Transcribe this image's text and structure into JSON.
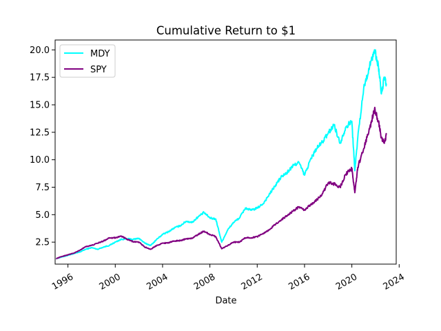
{
  "chart_data": {
    "type": "line",
    "title": "Cumulative Return to $1",
    "xlabel": "Date",
    "ylabel": "",
    "xlim": [
      "1994-12-01",
      "2023-10-01"
    ],
    "ylim": [
      0.5,
      20.9
    ],
    "x_ticks": [
      "1996",
      "2000",
      "2004",
      "2008",
      "2012",
      "2016",
      "2020",
      "2024"
    ],
    "y_ticks": [
      "2.5",
      "5.0",
      "7.5",
      "10.0",
      "12.5",
      "15.0",
      "17.5",
      "20.0"
    ],
    "x_tick_rotation": 30,
    "grid": false,
    "legend": {
      "position": "top-left"
    },
    "series": [
      {
        "name": "MDY",
        "color": "#00ffff",
        "points": [
          [
            "1995-01",
            1.0
          ],
          [
            "1995-07",
            1.15
          ],
          [
            "1996-01",
            1.3
          ],
          [
            "1996-07",
            1.45
          ],
          [
            "1997-01",
            1.6
          ],
          [
            "1997-07",
            1.85
          ],
          [
            "1998-01",
            2.0
          ],
          [
            "1998-07",
            1.85
          ],
          [
            "1999-01",
            2.05
          ],
          [
            "1999-07",
            2.2
          ],
          [
            "2000-01",
            2.5
          ],
          [
            "2000-07",
            2.75
          ],
          [
            "2001-01",
            2.8
          ],
          [
            "2001-07",
            2.75
          ],
          [
            "2002-01",
            2.85
          ],
          [
            "2002-07",
            2.4
          ],
          [
            "2003-01",
            2.2
          ],
          [
            "2003-07",
            2.75
          ],
          [
            "2004-01",
            3.2
          ],
          [
            "2004-07",
            3.45
          ],
          [
            "2005-01",
            3.8
          ],
          [
            "2005-07",
            4.0
          ],
          [
            "2006-01",
            4.4
          ],
          [
            "2006-07",
            4.3
          ],
          [
            "2007-01",
            4.8
          ],
          [
            "2007-07",
            5.2
          ],
          [
            "2008-01",
            4.7
          ],
          [
            "2008-07",
            4.6
          ],
          [
            "2009-01",
            2.5
          ],
          [
            "2009-07",
            3.6
          ],
          [
            "2010-01",
            4.3
          ],
          [
            "2010-07",
            4.7
          ],
          [
            "2011-01",
            5.6
          ],
          [
            "2011-07",
            5.4
          ],
          [
            "2012-01",
            5.6
          ],
          [
            "2012-07",
            6.0
          ],
          [
            "2013-01",
            6.8
          ],
          [
            "2013-07",
            7.6
          ],
          [
            "2014-01",
            8.4
          ],
          [
            "2014-07",
            8.8
          ],
          [
            "2015-01",
            9.4
          ],
          [
            "2015-07",
            9.8
          ],
          [
            "2016-01",
            8.6
          ],
          [
            "2016-07",
            10.0
          ],
          [
            "2017-01",
            11.0
          ],
          [
            "2017-07",
            11.6
          ],
          [
            "2018-01",
            12.4
          ],
          [
            "2018-07",
            13.2
          ],
          [
            "2019-01",
            11.5
          ],
          [
            "2019-07",
            13.0
          ],
          [
            "2020-01",
            13.5
          ],
          [
            "2020-04",
            9.0
          ],
          [
            "2020-07",
            12.0
          ],
          [
            "2021-01",
            16.5
          ],
          [
            "2021-07",
            18.5
          ],
          [
            "2021-12",
            20.0
          ],
          [
            "2022-04",
            18.5
          ],
          [
            "2022-07",
            16.0
          ],
          [
            "2022-10",
            17.5
          ],
          [
            "2022-12",
            16.8
          ]
        ]
      },
      {
        "name": "SPY",
        "color": "#800080",
        "points": [
          [
            "1995-01",
            1.0
          ],
          [
            "1995-07",
            1.2
          ],
          [
            "1996-01",
            1.35
          ],
          [
            "1996-07",
            1.5
          ],
          [
            "1997-01",
            1.75
          ],
          [
            "1997-07",
            2.1
          ],
          [
            "1998-01",
            2.2
          ],
          [
            "1998-07",
            2.4
          ],
          [
            "1999-01",
            2.6
          ],
          [
            "1999-07",
            2.9
          ],
          [
            "2000-01",
            2.9
          ],
          [
            "2000-07",
            3.05
          ],
          [
            "2001-01",
            2.75
          ],
          [
            "2001-07",
            2.55
          ],
          [
            "2002-01",
            2.5
          ],
          [
            "2002-07",
            2.05
          ],
          [
            "2003-01",
            1.85
          ],
          [
            "2003-07",
            2.2
          ],
          [
            "2004-01",
            2.4
          ],
          [
            "2004-07",
            2.45
          ],
          [
            "2005-01",
            2.6
          ],
          [
            "2005-07",
            2.65
          ],
          [
            "2006-01",
            2.8
          ],
          [
            "2006-07",
            2.85
          ],
          [
            "2007-01",
            3.2
          ],
          [
            "2007-07",
            3.5
          ],
          [
            "2008-01",
            3.2
          ],
          [
            "2008-07",
            3.0
          ],
          [
            "2009-01",
            1.9
          ],
          [
            "2009-07",
            2.2
          ],
          [
            "2010-01",
            2.5
          ],
          [
            "2010-07",
            2.5
          ],
          [
            "2011-01",
            2.9
          ],
          [
            "2011-07",
            2.9
          ],
          [
            "2012-01",
            3.0
          ],
          [
            "2012-07",
            3.3
          ],
          [
            "2013-01",
            3.6
          ],
          [
            "2013-07",
            4.1
          ],
          [
            "2014-01",
            4.5
          ],
          [
            "2014-07",
            4.9
          ],
          [
            "2015-01",
            5.3
          ],
          [
            "2015-07",
            5.7
          ],
          [
            "2016-01",
            5.4
          ],
          [
            "2016-07",
            5.9
          ],
          [
            "2017-01",
            6.3
          ],
          [
            "2017-07",
            6.9
          ],
          [
            "2018-01",
            7.9
          ],
          [
            "2018-07",
            7.8
          ],
          [
            "2019-01",
            7.5
          ],
          [
            "2019-07",
            8.7
          ],
          [
            "2020-01",
            9.2
          ],
          [
            "2020-04",
            7.0
          ],
          [
            "2020-07",
            9.3
          ],
          [
            "2021-01",
            11.0
          ],
          [
            "2021-07",
            12.8
          ],
          [
            "2021-12",
            14.6
          ],
          [
            "2022-04",
            13.5
          ],
          [
            "2022-07",
            12.0
          ],
          [
            "2022-10",
            11.5
          ],
          [
            "2022-12",
            12.3
          ]
        ]
      }
    ]
  }
}
